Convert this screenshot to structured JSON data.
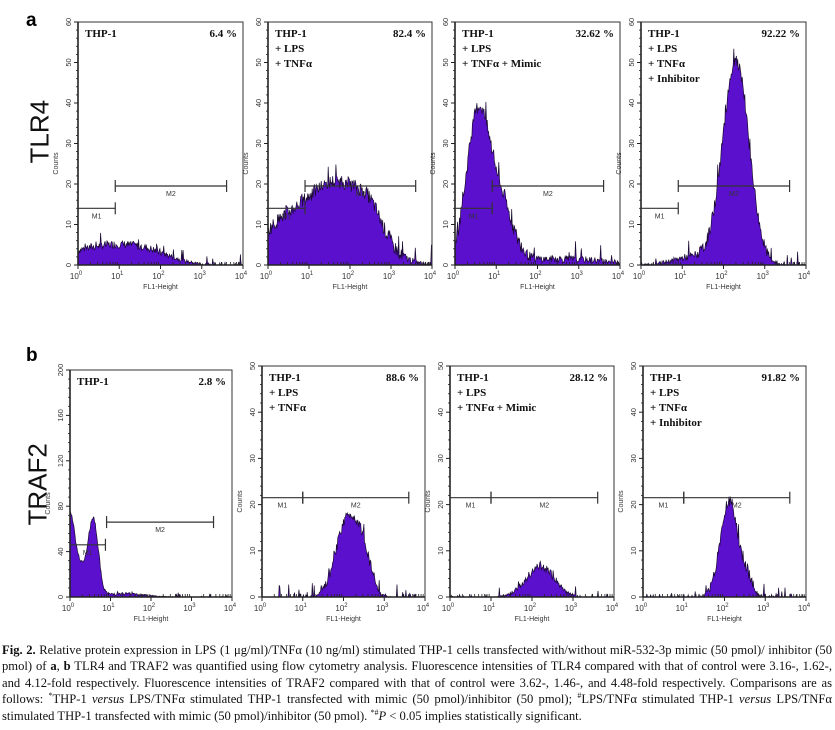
{
  "figure": {
    "panel_letters": [
      "a",
      "b"
    ],
    "row_labels": [
      "TLR4",
      "TRAF2"
    ],
    "colors": {
      "histogram_fill": "#5a10cc",
      "histogram_edge": "#1a0a30",
      "axis": "#222222",
      "gate": "#333333"
    }
  },
  "chart_data": [
    {
      "type": "area",
      "row": "TLR4",
      "title": "THP-1",
      "conditions": [
        "THP-1"
      ],
      "percent": "6.4 %",
      "xlabel": "FL1-Height",
      "ylabel": "Counts",
      "xscale": "log",
      "xlim": [
        1,
        10000
      ],
      "xticks": [
        "10^0",
        "10^1",
        "10^2",
        "10^3",
        "10^4"
      ],
      "ylim": [
        0,
        60
      ],
      "yticks": [
        0,
        10,
        20,
        30,
        40,
        50,
        60
      ],
      "gates": [
        {
          "name": "M1",
          "x": [
            1,
            8
          ],
          "y": 14
        },
        {
          "name": "M2",
          "x": [
            8,
            4000
          ],
          "y": 19.5
        }
      ],
      "peaks": [
        {
          "center": 0.6,
          "width": 0.9,
          "height": 4.5
        },
        {
          "center": 1.7,
          "width": 0.6,
          "height": 2
        }
      ],
      "noise": 2.0
    },
    {
      "type": "area",
      "row": "TLR4",
      "title": "THP-1",
      "conditions": [
        "THP-1",
        "+ LPS",
        "+ TNFα"
      ],
      "percent": "82.4 %",
      "xlabel": "FL1-Height",
      "ylabel": "Counts",
      "xscale": "log",
      "xlim": [
        1,
        10000
      ],
      "xticks": [
        "10^0",
        "10^1",
        "10^2",
        "10^3",
        "10^4"
      ],
      "ylim": [
        0,
        60
      ],
      "yticks": [
        0,
        10,
        20,
        30,
        40,
        50,
        60
      ],
      "gates": [
        {
          "name": "M1",
          "x": [
            1,
            8
          ],
          "y": 14
        },
        {
          "name": "M2",
          "x": [
            8,
            4000
          ],
          "y": 19.5
        }
      ],
      "peaks": [
        {
          "center": 1.7,
          "width": 0.75,
          "height": 20
        },
        {
          "center": 0.3,
          "width": 0.6,
          "height": 8
        },
        {
          "center": 2.5,
          "width": 0.3,
          "height": 5
        }
      ],
      "noise": 3.5
    },
    {
      "type": "area",
      "row": "TLR4",
      "title": "THP-1",
      "conditions": [
        "THP-1",
        "+ LPS",
        "+ TNFα + Mimic"
      ],
      "percent": "32.62 %",
      "xlabel": "FL1-Height",
      "ylabel": "Counts",
      "xscale": "log",
      "xlim": [
        1,
        10000
      ],
      "xticks": [
        "10^0",
        "10^1",
        "10^2",
        "10^3",
        "10^4"
      ],
      "ylim": [
        0,
        60
      ],
      "yticks": [
        0,
        10,
        20,
        30,
        40,
        50,
        60
      ],
      "gates": [
        {
          "name": "M1",
          "x": [
            1,
            8
          ],
          "y": 14
        },
        {
          "name": "M2",
          "x": [
            8,
            4000
          ],
          "y": 19.5
        }
      ],
      "peaks": [
        {
          "center": 0.55,
          "width": 0.28,
          "height": 36
        },
        {
          "center": 1.1,
          "width": 0.3,
          "height": 14
        },
        {
          "center": 2.5,
          "width": 1.2,
          "height": 1.5
        }
      ],
      "noise": 3.5
    },
    {
      "type": "area",
      "row": "TLR4",
      "title": "THP-1",
      "conditions": [
        "THP-1",
        "+ LPS",
        "+ TNFα",
        "+ Inhibitor"
      ],
      "percent": "92.22 %",
      "xlabel": "FL1-Height",
      "ylabel": "Counts",
      "xscale": "log",
      "xlim": [
        1,
        10000
      ],
      "xticks": [
        "10^0",
        "10^1",
        "10^2",
        "10^3",
        "10^4"
      ],
      "ylim": [
        0,
        60
      ],
      "yticks": [
        0,
        10,
        20,
        30,
        40,
        50,
        60
      ],
      "gates": [
        {
          "name": "M1",
          "x": [
            1,
            8
          ],
          "y": 14
        },
        {
          "name": "M2",
          "x": [
            8,
            4000
          ],
          "y": 19.5
        }
      ],
      "peaks": [
        {
          "center": 2.3,
          "width": 0.32,
          "height": 50
        },
        {
          "center": 1.3,
          "width": 0.5,
          "height": 2
        }
      ],
      "noise": 3.0
    },
    {
      "type": "area",
      "row": "TRAF2",
      "title": "THP-1",
      "conditions": [
        "THP-1"
      ],
      "percent": "2.8 %",
      "xlabel": "FL1-Height",
      "ylabel": "Counts",
      "xscale": "log",
      "xlim": [
        1,
        10000
      ],
      "xticks": [
        "10^0",
        "10^1",
        "10^2",
        "10^3",
        "10^4"
      ],
      "ylim": [
        0,
        200
      ],
      "yticks": [
        0,
        40,
        80,
        120,
        160,
        200
      ],
      "gates": [
        {
          "name": "M1",
          "x": [
            1,
            7.5
          ],
          "y": 46
        },
        {
          "name": "M2",
          "x": [
            8,
            3500
          ],
          "y": 66
        }
      ],
      "peaks": [
        {
          "center": 0.0,
          "width": 0.1,
          "height": 55
        },
        {
          "center": 0.58,
          "width": 0.12,
          "height": 64
        },
        {
          "center": 0.2,
          "width": 0.2,
          "height": 30
        },
        {
          "center": 1.3,
          "width": 0.5,
          "height": 3
        }
      ],
      "noise": 3.0
    },
    {
      "type": "area",
      "row": "TRAF2",
      "title": "THP-1",
      "conditions": [
        "THP-1",
        "+ LPS",
        "+ TNFα"
      ],
      "percent": "88.6 %",
      "xlabel": "FL1-Height",
      "ylabel": "Counts",
      "xscale": "log",
      "xlim": [
        1,
        10000
      ],
      "xticks": [
        "10^0",
        "10^1",
        "10^2",
        "10^3",
        "10^4"
      ],
      "ylim": [
        0,
        50
      ],
      "yticks": [
        0,
        10,
        20,
        30,
        40,
        50
      ],
      "gates": [
        {
          "name": "M1",
          "x": [
            1,
            10
          ],
          "y": 21.5
        },
        {
          "name": "M2",
          "x": [
            10,
            4000
          ],
          "y": 21.5
        }
      ],
      "peaks": [
        {
          "center": 2.1,
          "width": 0.28,
          "height": 17
        },
        {
          "center": 2.5,
          "width": 0.18,
          "height": 7
        }
      ],
      "noise": 2.2
    },
    {
      "type": "area",
      "row": "TRAF2",
      "title": "THP-1",
      "conditions": [
        "THP-1",
        "+ LPS",
        "+ TNFα + Mimic"
      ],
      "percent": "28.12 %",
      "xlabel": "FL1-Height",
      "ylabel": "Counts",
      "xscale": "log",
      "xlim": [
        1,
        10000
      ],
      "xticks": [
        "10^0",
        "10^1",
        "10^2",
        "10^3",
        "10^4"
      ],
      "ylim": [
        0,
        50
      ],
      "yticks": [
        0,
        10,
        20,
        30,
        40,
        50
      ],
      "gates": [
        {
          "name": "M1",
          "x": [
            1,
            10
          ],
          "y": 21.5
        },
        {
          "name": "M2",
          "x": [
            10,
            4000
          ],
          "y": 21.5
        }
      ],
      "peaks": [
        {
          "center": 2.2,
          "width": 0.35,
          "height": 6.5
        }
      ],
      "noise": 1.8
    },
    {
      "type": "area",
      "row": "TRAF2",
      "title": "THP-1",
      "conditions": [
        "THP-1",
        "+ LPS",
        "+ TNFα",
        "+ Inhibitor"
      ],
      "percent": "91.82 %",
      "xlabel": "FL1-Height",
      "ylabel": "Counts",
      "xscale": "log",
      "xlim": [
        1,
        10000
      ],
      "xticks": [
        "10^0",
        "10^1",
        "10^2",
        "10^3",
        "10^4"
      ],
      "ylim": [
        0,
        50
      ],
      "yticks": [
        0,
        10,
        20,
        30,
        40,
        50
      ],
      "gates": [
        {
          "name": "M1",
          "x": [
            1,
            10
          ],
          "y": 21.5
        },
        {
          "name": "M2",
          "x": [
            10,
            4000
          ],
          "y": 21.5
        }
      ],
      "peaks": [
        {
          "center": 2.12,
          "width": 0.22,
          "height": 21
        },
        {
          "center": 2.6,
          "width": 0.12,
          "height": 3
        }
      ],
      "noise": 2.5
    }
  ],
  "caption": {
    "fig_label": "Fig. 2.",
    "line1_text": " Relative protein expression in LPS (1 μg/ml)/TNFα (10 ng/ml) stimulated THP-1 cells transfected with/without miR-532-3p mimic (50 pmol)/ inhibitor (50 pmol) of ",
    "bold_a": "a",
    "sep": ", ",
    "bold_b": "b",
    "text2": " TLR4 and TRAF2 was quantified using flow cytometry analysis. Fluorescence intensities of TLR4 compared with that of control were 3.16-, 1.62-, and 4.12-fold respectively. Fluorescence intensities of TRAF2 compared with that of control were 3.62-, 1.46-, and 4.48-fold respectively. Comparisons are as follows: ",
    "sup_star": "*",
    "text3": "THP-1 ",
    "versus1": "versus",
    "text4": " LPS/TNFα stimulated THP-1 transfected with mimic (50 pmol)/inhibitor (50 pmol); ",
    "sup_hash": "#",
    "text5": "LPS/TNFα stimulated THP-1 ",
    "versus2": "versus",
    "text6": " LPS/TNFα stimulated THP-1 transfected with mimic (50 pmol)/inhibitor (50 pmol). ",
    "sup_both": "*#",
    "p_label": "P",
    "text7": " < 0.05 implies statistically significant."
  }
}
